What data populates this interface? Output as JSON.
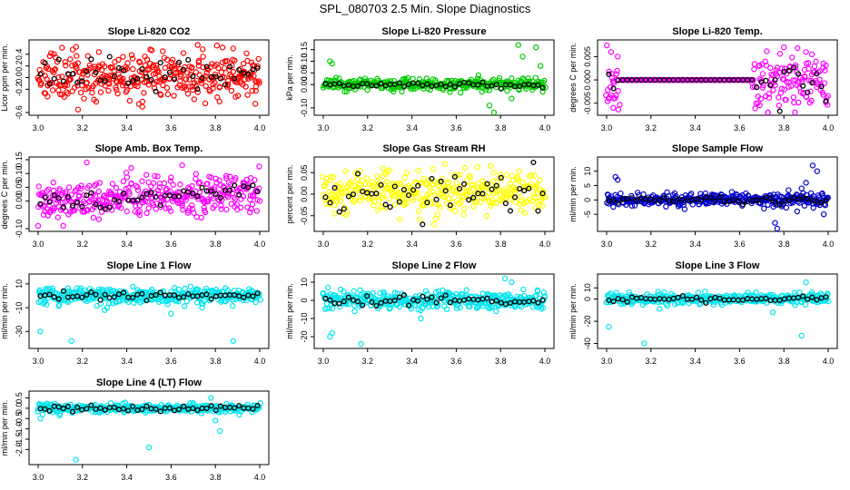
{
  "title": "SPL_080703  2.5 Min. Slope Diagnostics",
  "chart_data": [
    {
      "type": "scatter",
      "title": "Slope Li-820 CO2",
      "ylabel": "Licor ppm per min.",
      "color": "#ff0000",
      "xlim": [
        3.0,
        4.0
      ],
      "ylim": [
        -0.6,
        0.6
      ],
      "xticks": [
        "3.0",
        "3.2",
        "3.4",
        "3.6",
        "3.8",
        "4.0"
      ],
      "yticks": [
        {
          "v": -0.6,
          "label": "-0.6"
        },
        {
          "v": -0.2,
          "label": "-0.2"
        },
        {
          "v": 0.0,
          "label": "0.0"
        },
        {
          "v": 0.2,
          "label": "0.2"
        },
        {
          "v": 0.4,
          "label": "0.4"
        }
      ],
      "spread": 0.2,
      "bias": 0.05,
      "black_spread": 0.12,
      "outliers": [
        [
          3.18,
          -0.55
        ],
        [
          3.72,
          0.56
        ],
        [
          3.88,
          0.5
        ],
        [
          3.47,
          -0.5
        ],
        [
          3.98,
          -0.45
        ]
      ],
      "seed": 11
    },
    {
      "type": "scatter",
      "title": "Slope Li-820 Pressure",
      "ylabel": "kPa per min.",
      "color": "#00cc00",
      "xlim": [
        3.0,
        4.0
      ],
      "ylim": [
        -0.12,
        0.18
      ],
      "xticks": [
        "3.0",
        "3.2",
        "3.4",
        "3.6",
        "3.8",
        "4.0"
      ],
      "yticks": [
        {
          "v": -0.1,
          "label": "-0.10"
        },
        {
          "v": 0.0,
          "label": "0.00"
        },
        {
          "v": 0.05,
          "label": "0.05"
        },
        {
          "v": 0.1,
          "label": "0.10"
        },
        {
          "v": 0.15,
          "label": "0.15"
        }
      ],
      "spread": 0.012,
      "bias": 0.0,
      "black_spread": 0.006,
      "outliers": [
        [
          3.03,
          0.1
        ],
        [
          3.04,
          0.09
        ],
        [
          3.75,
          -0.09
        ],
        [
          3.77,
          -0.12
        ],
        [
          3.88,
          0.17
        ],
        [
          3.9,
          0.12
        ],
        [
          3.96,
          0.16
        ],
        [
          3.98,
          0.08
        ],
        [
          3.85,
          -0.06
        ],
        [
          3.7,
          0.04
        ]
      ],
      "seed": 23
    },
    {
      "type": "scatter",
      "title": "Slope Li-820 Temp.",
      "ylabel": "degrees C per min.",
      "color": "#ff00ff",
      "xlim": [
        3.0,
        4.0
      ],
      "ylim": [
        -0.007,
        0.008
      ],
      "xticks": [
        "3.0",
        "3.2",
        "3.4",
        "3.6",
        "3.8",
        "4.0"
      ],
      "yticks": [
        {
          "v": -0.005,
          "label": "-0.005"
        },
        {
          "v": 0.0,
          "label": "0.000"
        },
        {
          "v": 0.005,
          "label": "0.005"
        }
      ],
      "spread": 0.0,
      "bias": 0.0,
      "black_spread": 0.0,
      "noisy_from": 3.66,
      "noisy_to": 3.06,
      "noisy_spread": 0.003,
      "outliers": [
        [
          3.02,
          0.006
        ],
        [
          3.01,
          -0.004
        ],
        [
          3.05,
          0.005
        ],
        [
          3.03,
          -0.006
        ],
        [
          3.8,
          0.007
        ],
        [
          3.85,
          -0.007
        ],
        [
          3.9,
          0.006
        ]
      ],
      "seed": 37
    },
    {
      "type": "scatter",
      "title": "Slope Amb. Box Temp.",
      "ylabel": "degrees C per min.",
      "color": "#ff00ff",
      "xlim": [
        3.0,
        4.0
      ],
      "ylim": [
        -0.1,
        0.15
      ],
      "xticks": [
        "3.0",
        "3.2",
        "3.4",
        "3.6",
        "3.8",
        "4.0"
      ],
      "yticks": [
        {
          "v": -0.1,
          "label": "-0.10"
        },
        {
          "v": 0.0,
          "label": "0.00"
        },
        {
          "v": 0.05,
          "label": "0.05"
        },
        {
          "v": 0.1,
          "label": "0.10"
        },
        {
          "v": 0.15,
          "label": "0.15"
        }
      ],
      "spread": 0.035,
      "bias": 0.015,
      "trend": 0.04,
      "black_spread": 0.02,
      "outliers": [
        [
          3.22,
          0.14
        ],
        [
          3.65,
          0.13
        ],
        [
          3.0,
          -0.09
        ],
        [
          3.42,
          0.12
        ]
      ],
      "seed": 41
    },
    {
      "type": "scatter",
      "title": "Slope Gas Stream RH",
      "ylabel": "percent per min.",
      "color": "#ffff00",
      "xlim": [
        3.0,
        4.0
      ],
      "ylim": [
        -0.08,
        0.08
      ],
      "xticks": [
        "3.0",
        "3.2",
        "3.4",
        "3.6",
        "3.8",
        "4.0"
      ],
      "yticks": [
        {
          "v": -0.05,
          "label": "-0.05"
        },
        {
          "v": 0.0,
          "label": "0.00"
        },
        {
          "v": 0.05,
          "label": "0.05"
        }
      ],
      "spread": 0.025,
      "bias": 0.005,
      "black_spread": 0.025,
      "outliers": [
        [
          3.55,
          0.07
        ],
        [
          3.5,
          -0.07
        ],
        [
          3.27,
          0.06
        ]
      ],
      "seed": 53
    },
    {
      "type": "scatter",
      "title": "Slope Sample Flow",
      "ylabel": "ml/min per min.",
      "color": "#0000cc",
      "xlim": [
        3.0,
        4.0
      ],
      "ylim": [
        -10,
        14
      ],
      "xticks": [
        "3.0",
        "3.2",
        "3.4",
        "3.6",
        "3.8",
        "4.0"
      ],
      "yticks": [
        {
          "v": -5,
          "label": "-5"
        },
        {
          "v": 0,
          "label": "0"
        },
        {
          "v": 5,
          "label": "5"
        },
        {
          "v": 10,
          "label": "10"
        }
      ],
      "spread": 1.0,
      "bias": 0.0,
      "black_spread": 0.5,
      "outliers": [
        [
          3.04,
          8
        ],
        [
          3.05,
          7
        ],
        [
          3.76,
          -8
        ],
        [
          3.77,
          -10
        ],
        [
          3.9,
          6
        ],
        [
          3.93,
          12
        ],
        [
          3.95,
          10
        ],
        [
          3.88,
          4
        ],
        [
          3.98,
          -5
        ],
        [
          3.86,
          -4
        ],
        [
          3.71,
          -3
        ]
      ],
      "seed": 67
    },
    {
      "type": "scatter",
      "title": "Slope Line 1 Flow",
      "ylabel": "ml/min per min.",
      "color": "#00e5ee",
      "xlim": [
        3.0,
        4.0
      ],
      "ylim": [
        -42,
        16
      ],
      "xticks": [
        "3.0",
        "3.2",
        "3.4",
        "3.6",
        "3.8",
        "4.0"
      ],
      "yticks": [
        {
          "v": -30,
          "label": "-30"
        },
        {
          "v": -10,
          "label": "-10"
        },
        {
          "v": 10,
          "label": "10"
        }
      ],
      "spread": 3.5,
      "bias": 0.0,
      "black_spread": 1.5,
      "outliers": [
        [
          3.01,
          -30
        ],
        [
          3.15,
          -38
        ],
        [
          3.88,
          -38
        ],
        [
          3.6,
          -15
        ],
        [
          3.3,
          -12
        ],
        [
          3.74,
          -10
        ]
      ],
      "seed": 79
    },
    {
      "type": "scatter",
      "title": "Slope Line 2 Flow",
      "ylabel": "ml/min per min.",
      "color": "#00e5ee",
      "xlim": [
        3.0,
        4.0
      ],
      "ylim": [
        -25,
        13
      ],
      "xticks": [
        "3.0",
        "3.2",
        "3.4",
        "3.6",
        "3.8",
        "4.0"
      ],
      "yticks": [
        {
          "v": -20,
          "label": "-20"
        },
        {
          "v": -10,
          "label": "-10"
        },
        {
          "v": 0,
          "label": "0"
        },
        {
          "v": 10,
          "label": "10"
        }
      ],
      "spread": 2.5,
      "bias": 0.0,
      "black_spread": 1.5,
      "outliers": [
        [
          3.03,
          -20
        ],
        [
          3.04,
          -18
        ],
        [
          3.17,
          -24
        ],
        [
          3.82,
          12
        ],
        [
          3.85,
          10
        ],
        [
          3.78,
          -6
        ],
        [
          3.44,
          -10
        ]
      ],
      "seed": 97
    },
    {
      "type": "scatter",
      "title": "Slope Line 3 Flow",
      "ylabel": "ml/min per min.",
      "color": "#00e5ee",
      "xlim": [
        3.0,
        4.0
      ],
      "ylim": [
        -42,
        20
      ],
      "xticks": [
        "3.0",
        "3.2",
        "3.4",
        "3.6",
        "3.8",
        "4.0"
      ],
      "yticks": [
        {
          "v": -40,
          "label": "-40"
        },
        {
          "v": -20,
          "label": "-20"
        },
        {
          "v": 0,
          "label": "0"
        },
        {
          "v": 10,
          "label": "10"
        }
      ],
      "spread": 2.5,
      "bias": 0.0,
      "black_spread": 1.2,
      "outliers": [
        [
          3.01,
          -25
        ],
        [
          3.17,
          -40
        ],
        [
          3.88,
          -33
        ],
        [
          3.75,
          -12
        ],
        [
          3.9,
          15
        ]
      ],
      "seed": 103
    },
    {
      "type": "scatter",
      "title": "Slope Line 4 (LT) Flow",
      "ylabel": "ml/min per min.",
      "color": "#00e5ee",
      "xlim": [
        3.0,
        4.0
      ],
      "ylim": [
        -2.6,
        0.7
      ],
      "xticks": [
        "3.0",
        "3.2",
        "3.4",
        "3.6",
        "3.8",
        "4.0"
      ],
      "yticks": [
        {
          "v": -2.0,
          "label": "-2.0"
        },
        {
          "v": -1.5,
          "label": "-1.5"
        },
        {
          "v": -1.0,
          "label": "-1.0"
        },
        {
          "v": -0.5,
          "label": "-0.5"
        },
        {
          "v": 0.0,
          "label": "0.0"
        },
        {
          "v": 0.5,
          "label": "0.5"
        }
      ],
      "spread": 0.1,
      "bias": 0.0,
      "black_spread": 0.08,
      "outliers": [
        [
          3.01,
          -0.5
        ],
        [
          3.02,
          -0.3
        ],
        [
          3.17,
          -2.5
        ],
        [
          3.5,
          -1.9
        ],
        [
          3.82,
          -1.1
        ],
        [
          3.78,
          0.5
        ],
        [
          3.8,
          -0.6
        ]
      ],
      "seed": 113
    }
  ]
}
